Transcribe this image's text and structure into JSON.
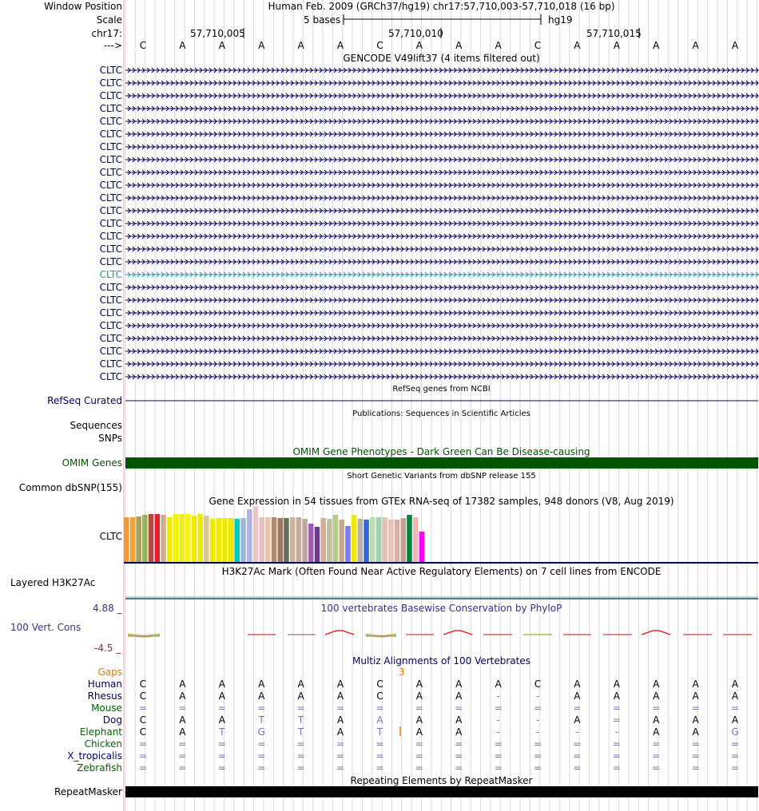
{
  "header": {
    "window_position_label": "Window Position",
    "window_position_text": "Human Feb. 2009 (GRCh37/hg19)   chr17:57,710,003-57,710,018 (16 bp)",
    "scale_label": "Scale",
    "scale_bases": "5 bases",
    "scale_assembly": "hg19",
    "chrom_label": "chr17:",
    "coord_marks": [
      "57,710,005",
      "57,710,010",
      "57,710,015"
    ],
    "strand_label": "--->",
    "bases": [
      "C",
      "A",
      "A",
      "A",
      "A",
      "A",
      "C",
      "A",
      "A",
      "A",
      "C",
      "A",
      "A",
      "A",
      "A",
      "A"
    ]
  },
  "gencode": {
    "title": "GENCODE V49lift37 (4 items filtered out)",
    "transcripts": [
      "CLTC",
      "CLTC",
      "CLTC",
      "CLTC",
      "CLTC",
      "CLTC",
      "CLTC",
      "CLTC",
      "CLTC",
      "CLTC",
      "CLTC",
      "CLTC",
      "CLTC",
      "CLTC",
      "CLTC",
      "CLTC",
      "CLTC",
      "CLTC",
      "CLTC",
      "CLTC",
      "CLTC",
      "CLTC",
      "CLTC",
      "CLTC",
      "CLTC"
    ],
    "highlighted_index": 16,
    "color": "#000066",
    "highlight_color": "#2b8fa6"
  },
  "refseq": {
    "label": "RefSeq Curated",
    "title": "RefSeq genes from NCBI"
  },
  "publications": {
    "title": "Publications: Sequences in Scientific Articles",
    "label_line1": "Sequences",
    "label_line2": "SNPs"
  },
  "omim": {
    "title": "OMIM Gene Phenotypes - Dark Green Can Be Disease-causing",
    "label": "OMIM Genes",
    "color": "#005500"
  },
  "dbsnp": {
    "title": "Short Genetic Variants from dbSNP release 155",
    "label": "Common dbSNP(155)"
  },
  "gtex": {
    "title": "Gene Expression in 54 tissues from GTEx RNA-seq of 17382 samples, 948 donors (V8, Aug 2019)",
    "label": "CLTC"
  },
  "h3k27ac": {
    "title": "H3K27Ac Mark (Often Found Near Active Regulatory Elements) on 7 cell lines from ENCODE",
    "label": "Layered H3K27Ac"
  },
  "phylop": {
    "title": "100 vertebrates Basewise Conservation by PhyloP",
    "label": "100 Vert. Cons",
    "max_label": "4.88 _",
    "min_label": "-4.5 _"
  },
  "multiz": {
    "title": "Multiz Alignments of 100 Vertebrates",
    "gaps_label": "Gaps",
    "gap_count": "3",
    "species": [
      {
        "name": "Human",
        "color": "#000066",
        "bases": [
          "C",
          "A",
          "A",
          "A",
          "A",
          "A",
          "C",
          "A",
          "A",
          "A",
          "C",
          "A",
          "A",
          "A",
          "A",
          "A"
        ]
      },
      {
        "name": "Rhesus",
        "color": "#000066",
        "bases": [
          "C",
          "A",
          "A",
          "A",
          "A",
          "A",
          "C",
          "A",
          "A",
          "-",
          "-",
          "A",
          "A",
          "A",
          "A",
          "A"
        ]
      },
      {
        "name": "Mouse",
        "color": "#006600",
        "bases": [
          "=",
          "=",
          "=",
          "=",
          "=",
          "=",
          "=",
          "=",
          "=",
          "=",
          "=",
          "=",
          "=",
          "=",
          "=",
          "="
        ]
      },
      {
        "name": "Dog",
        "color": "#000066",
        "bases": [
          "C",
          "A",
          "A",
          "T",
          "T",
          "A",
          "A",
          "A",
          "A",
          "-",
          "-",
          "A",
          "=",
          "A",
          "A",
          "A"
        ]
      },
      {
        "name": "Elephant",
        "color": "#006600",
        "bases": [
          "C",
          "A",
          "T",
          "G",
          "T",
          "A",
          "T",
          "A",
          "A",
          "-",
          "-",
          "-",
          "-",
          "A",
          "A",
          "G"
        ]
      },
      {
        "name": "Chicken",
        "color": "#006600",
        "bases": [
          "=",
          "=",
          "=",
          "=",
          "=",
          "=",
          "=",
          "=",
          "=",
          "=",
          "=",
          "=",
          "=",
          "=",
          "=",
          "="
        ]
      },
      {
        "name": "X_tropicalis",
        "color": "#000066",
        "bases": [
          "=",
          "=",
          "=",
          "=",
          "=",
          "=",
          "=",
          "=",
          "=",
          "=",
          "=",
          "=",
          "=",
          "=",
          "=",
          "="
        ]
      },
      {
        "name": "Zebrafish",
        "color": "#006600",
        "bases": [
          "=",
          "=",
          "=",
          "=",
          "=",
          "=",
          "=",
          "=",
          "=",
          "=",
          "=",
          "=",
          "=",
          "=",
          "=",
          "="
        ]
      }
    ]
  },
  "repeatmasker": {
    "title": "Repeating Elements by RepeatMasker",
    "label": "RepeatMasker"
  },
  "gtex_bar_colors": [
    "#f39c34",
    "#f3a33a",
    "#a4a060",
    "#96b25a",
    "#b1483a",
    "#e6202a",
    "#cfab8b",
    "#f0e900",
    "#f3f000",
    "#ecee2a",
    "#f5ef1a",
    "#f0e900",
    "#f0e900",
    "#d8c890",
    "#f0e900",
    "#f0e900",
    "#f0e900",
    "#f0e900",
    "#00c9c0",
    "#9cb6d8",
    "#b1b1e5",
    "#e6c6c6",
    "#e6c0c0",
    "#e8c4b0",
    "#b08c70",
    "#a4785c",
    "#6e6e5a",
    "#c7b49c",
    "#c4aca0",
    "#c2a6a0",
    "#9a5fb2",
    "#6e3a8a",
    "#d0b090",
    "#c0c0a0",
    "#b6cd86",
    "#c4a890",
    "#7e7ae8",
    "#f0e900",
    "#b8b0a0",
    "#2e6bd8",
    "#b8e0b0",
    "#a4d0b0",
    "#e0c2b4",
    "#e4c2b8",
    "#d6b0a6",
    "#c4a28e",
    "#00863a",
    "#f5b5b5",
    "#ff00ff"
  ]
}
